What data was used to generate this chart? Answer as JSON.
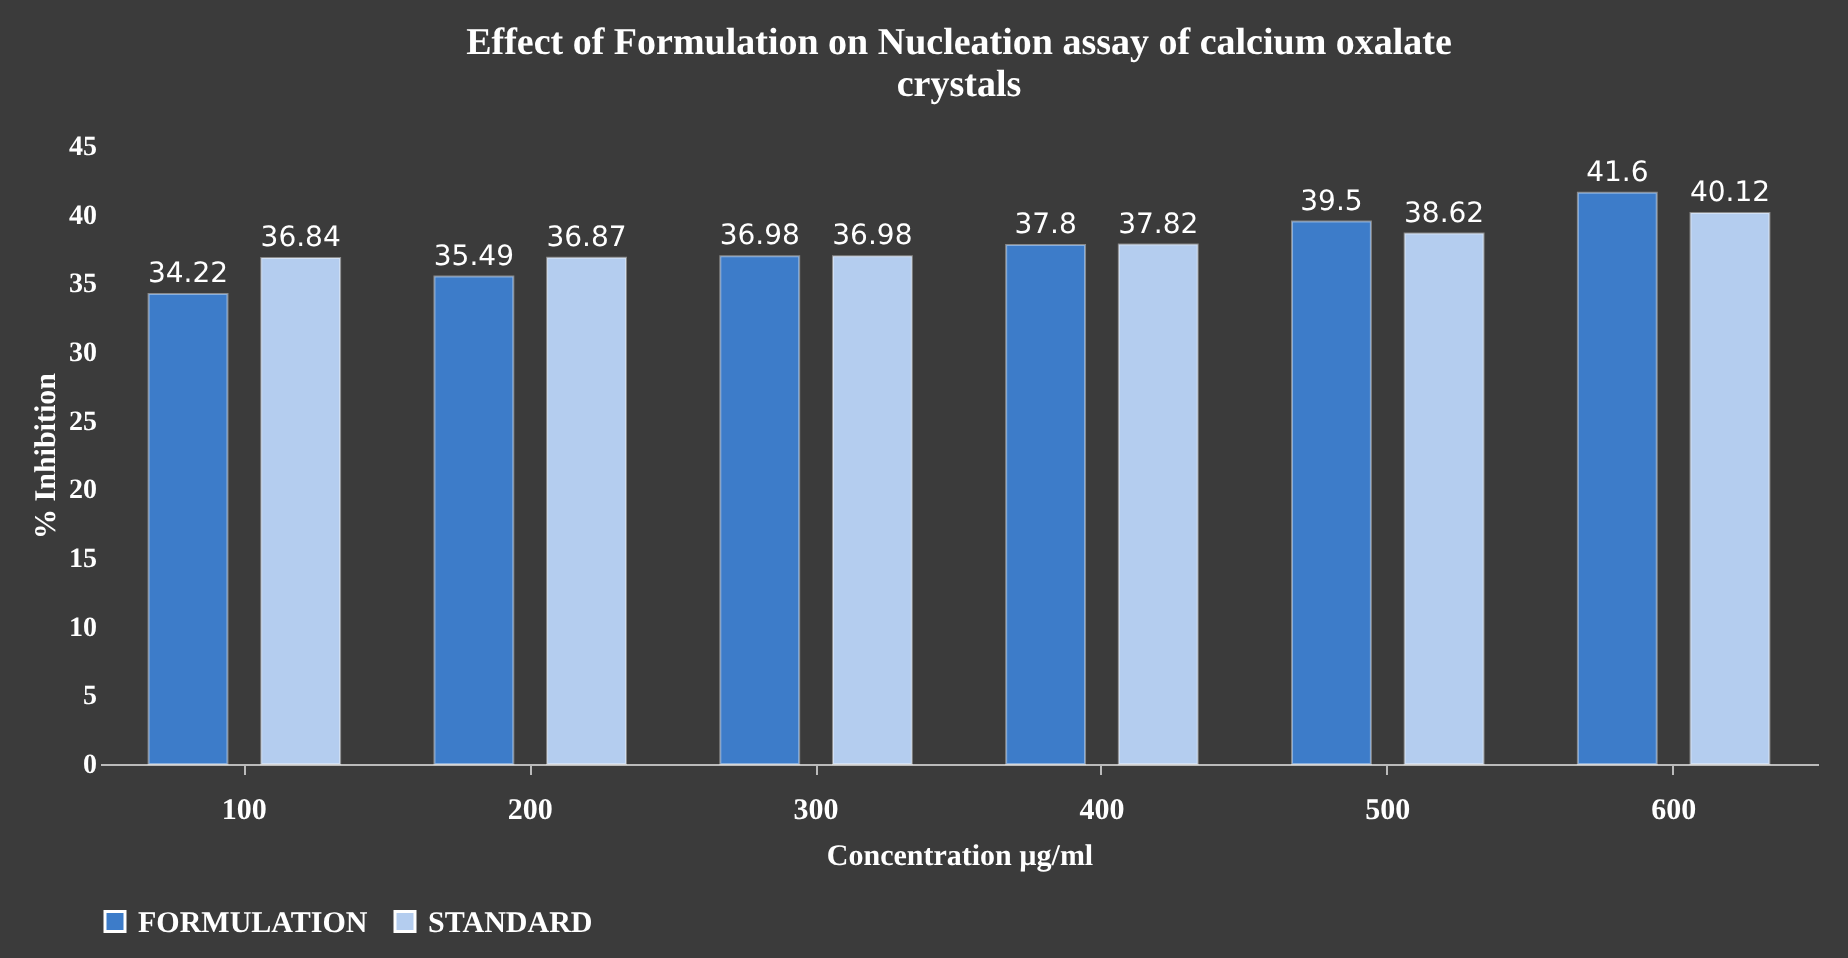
{
  "chart_data": {
    "type": "bar",
    "title": "Effect of Formulation on Nucleation assay of calcium oxalate crystals",
    "xlabel": "Concentration µg/ml",
    "ylabel": "% Inhibition",
    "categories": [
      "100",
      "200",
      "300",
      "400",
      "500",
      "600"
    ],
    "series": [
      {
        "name": "FORMULATION",
        "color": "#3d7cc9",
        "values": [
          34.22,
          35.49,
          36.98,
          37.8,
          39.5,
          41.6
        ]
      },
      {
        "name": "STANDARD",
        "color": "#b4cdef",
        "values": [
          36.84,
          36.87,
          36.98,
          37.82,
          38.62,
          40.12
        ]
      }
    ],
    "ylim": [
      0,
      45
    ],
    "yticks": [
      0,
      5,
      10,
      15,
      20,
      25,
      30,
      35,
      40,
      45
    ],
    "data_labels": true,
    "legend": "bottom",
    "grid": false
  }
}
